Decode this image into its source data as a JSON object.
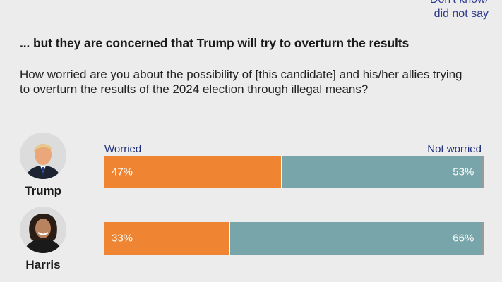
{
  "legend_note": {
    "line1": "Don't know/",
    "line2": "did not say"
  },
  "headline": "... but they are concerned that Trump will try to overturn the results",
  "question": "How worried are you about the possibility of [this candidate] and his/her allies trying to overturn the results of the 2024 election through illegal means?",
  "chart_data": {
    "type": "bar",
    "orientation": "horizontal-stacked",
    "title": "... but they are concerned that Trump will try to overturn the results",
    "subtitle": "How worried are you about the possibility of [this candidate] and his/her allies trying to overturn the results of the 2024 election through illegal means?",
    "categories": [
      "Trump",
      "Harris"
    ],
    "series": [
      {
        "name": "Worried",
        "values": [
          47,
          33
        ],
        "labels": [
          "47%",
          "33%"
        ],
        "color": "#ef8533"
      },
      {
        "name": "Not worried",
        "values": [
          53,
          66
        ],
        "labels": [
          "53%",
          "66%"
        ],
        "color": "#78a5aa"
      },
      {
        "name": "Don't know/did not say",
        "values": [
          0.5,
          0.5
        ],
        "color": "#9a9a9a"
      }
    ],
    "series_labels": {
      "worried": "Worried",
      "not_worried": "Not worried"
    },
    "xlim": [
      0,
      100
    ]
  }
}
